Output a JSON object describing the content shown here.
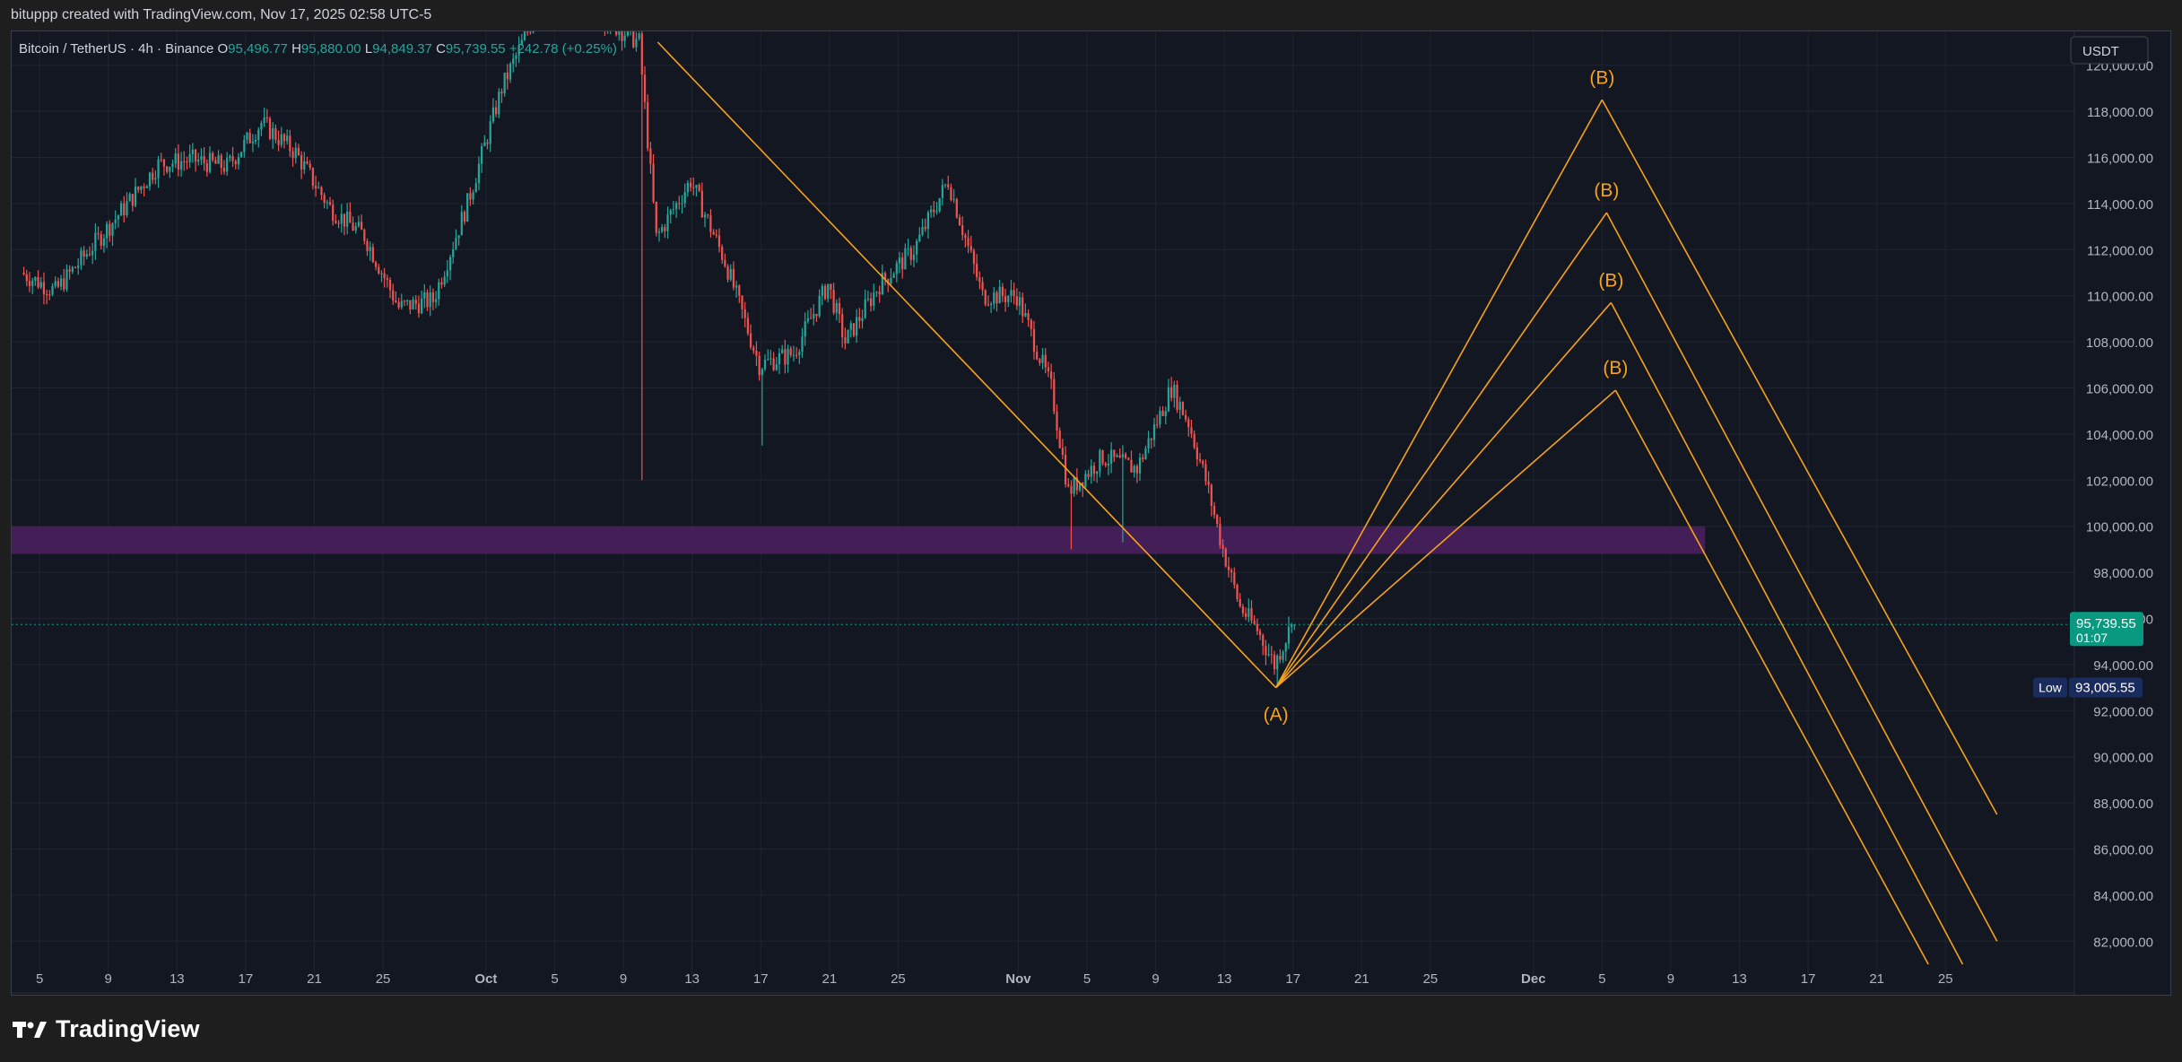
{
  "header": {
    "caption": "bituppp created with TradingView.com, Nov 17, 2025 02:58 UTC-5"
  },
  "legend": {
    "symbol": "Bitcoin / TetherUS · 4h · Binance",
    "open_label": "O",
    "open": "95,496.77",
    "high_label": "H",
    "high": "95,880.00",
    "low_label": "L",
    "low": "94,849.37",
    "close_label": "C",
    "close": "95,739.55",
    "change": "+242.78 (+0.25%)"
  },
  "branding": {
    "logo_text": "TradingView"
  },
  "colors": {
    "background": "#131722",
    "grid": "#1f2430",
    "up": "#26a69a",
    "down": "#ef5350",
    "annotation": "#f7a21b",
    "zone": "#4a1f5c",
    "price_tag": "#089981",
    "low_tag": "#1a2c5e"
  },
  "chart_data": {
    "type": "candlestick",
    "currency_label": "USDT",
    "y_axis": {
      "min": 81000,
      "max": 121000,
      "ticks": [
        82000,
        84000,
        86000,
        88000,
        90000,
        92000,
        94000,
        96000,
        98000,
        100000,
        102000,
        104000,
        106000,
        108000,
        110000,
        112000,
        114000,
        116000,
        118000,
        120000
      ],
      "tick_labels": [
        "82,000.00",
        "84,000.00",
        "86,000.00",
        "88,000.00",
        "90,000.00",
        "92,000.00",
        "94,000.00",
        "96,000.00",
        "98,000.00",
        "100,000.00",
        "102,000.00",
        "104,000.00",
        "106,000.00",
        "108,000.00",
        "110,000.00",
        "112,000.00",
        "114,000.00",
        "116,000.00",
        "118,000.00",
        "120,000.00"
      ]
    },
    "x_axis": {
      "start": "2025-09-04",
      "end": "2025-12-30",
      "ticks": [
        {
          "date": "2025-09-05",
          "label": "5"
        },
        {
          "date": "2025-09-09",
          "label": "9"
        },
        {
          "date": "2025-09-13",
          "label": "13"
        },
        {
          "date": "2025-09-17",
          "label": "17"
        },
        {
          "date": "2025-09-21",
          "label": "21"
        },
        {
          "date": "2025-09-25",
          "label": "25"
        },
        {
          "date": "2025-10-01",
          "label": "Oct"
        },
        {
          "date": "2025-10-05",
          "label": "5"
        },
        {
          "date": "2025-10-09",
          "label": "9"
        },
        {
          "date": "2025-10-13",
          "label": "13"
        },
        {
          "date": "2025-10-17",
          "label": "17"
        },
        {
          "date": "2025-10-21",
          "label": "21"
        },
        {
          "date": "2025-10-25",
          "label": "25"
        },
        {
          "date": "2025-11-01",
          "label": "Nov"
        },
        {
          "date": "2025-11-05",
          "label": "5"
        },
        {
          "date": "2025-11-09",
          "label": "9"
        },
        {
          "date": "2025-11-13",
          "label": "13"
        },
        {
          "date": "2025-11-17",
          "label": "17"
        },
        {
          "date": "2025-11-21",
          "label": "21"
        },
        {
          "date": "2025-11-25",
          "label": "25"
        },
        {
          "date": "2025-12-01",
          "label": "Dec"
        },
        {
          "date": "2025-12-05",
          "label": "5"
        },
        {
          "date": "2025-12-09",
          "label": "9"
        },
        {
          "date": "2025-12-13",
          "label": "13"
        },
        {
          "date": "2025-12-17",
          "label": "17"
        },
        {
          "date": "2025-12-21",
          "label": "21"
        },
        {
          "date": "2025-12-25",
          "label": "25"
        }
      ]
    },
    "price_path": [
      {
        "date": "2025-09-04",
        "price": 111000
      },
      {
        "date": "2025-09-06",
        "price": 110200
      },
      {
        "date": "2025-09-08",
        "price": 112000
      },
      {
        "date": "2025-09-10",
        "price": 113800
      },
      {
        "date": "2025-09-12",
        "price": 115700
      },
      {
        "date": "2025-09-14",
        "price": 115900
      },
      {
        "date": "2025-09-16",
        "price": 115600
      },
      {
        "date": "2025-09-18",
        "price": 117500
      },
      {
        "date": "2025-09-20",
        "price": 116200
      },
      {
        "date": "2025-09-22",
        "price": 113800
      },
      {
        "date": "2025-09-24",
        "price": 112600
      },
      {
        "date": "2025-09-26",
        "price": 109500
      },
      {
        "date": "2025-09-28",
        "price": 109800
      },
      {
        "date": "2025-09-30",
        "price": 114000
      },
      {
        "date": "2025-10-02",
        "price": 119000
      },
      {
        "date": "2025-10-04",
        "price": 122300
      },
      {
        "date": "2025-10-06",
        "price": 124000
      },
      {
        "date": "2025-10-08",
        "price": 122000
      },
      {
        "date": "2025-10-10",
        "price": 121000
      },
      {
        "date": "2025-10-11",
        "price": 112500
      },
      {
        "date": "2025-10-13",
        "price": 115000
      },
      {
        "date": "2025-10-15",
        "price": 111500
      },
      {
        "date": "2025-10-17",
        "price": 107000
      },
      {
        "date": "2025-10-19",
        "price": 107500
      },
      {
        "date": "2025-10-21",
        "price": 110500
      },
      {
        "date": "2025-10-22",
        "price": 108000
      },
      {
        "date": "2025-10-24",
        "price": 110500
      },
      {
        "date": "2025-10-26",
        "price": 112000
      },
      {
        "date": "2025-10-28",
        "price": 115000
      },
      {
        "date": "2025-10-30",
        "price": 110000
      },
      {
        "date": "2025-11-01",
        "price": 110000
      },
      {
        "date": "2025-11-03",
        "price": 106000
      },
      {
        "date": "2025-11-04",
        "price": 101500
      },
      {
        "date": "2025-11-06",
        "price": 103000
      },
      {
        "date": "2025-11-08",
        "price": 102500
      },
      {
        "date": "2025-11-10",
        "price": 106000
      },
      {
        "date": "2025-11-11",
        "price": 104500
      },
      {
        "date": "2025-11-12",
        "price": 102000
      },
      {
        "date": "2025-11-13",
        "price": 99000
      },
      {
        "date": "2025-11-14",
        "price": 96500
      },
      {
        "date": "2025-11-15",
        "price": 95500
      },
      {
        "date": "2025-11-16",
        "price": 94000
      },
      {
        "date": "2025-11-17",
        "price": 95739.55
      }
    ],
    "wicks": [
      {
        "date": "2025-10-10",
        "low": 102000
      },
      {
        "date": "2025-10-17",
        "low": 103500
      },
      {
        "date": "2025-11-04",
        "low": 99000
      },
      {
        "date": "2025-11-07",
        "low": 99300
      },
      {
        "date": "2025-11-16",
        "low": 93005.55
      }
    ],
    "zone": {
      "from": 98800,
      "to": 100000,
      "start": "2025-09-04",
      "end": "2025-12-11"
    },
    "trendline": {
      "from": {
        "date": "2025-10-11",
        "price": 121000
      },
      "to": {
        "date": "2025-11-16",
        "price": 93000
      }
    },
    "wave_a": {
      "date": "2025-11-16",
      "price": 93000,
      "label": "(A)"
    },
    "wave_b": [
      {
        "date": "2025-12-05",
        "price": 118500,
        "label": "(B)",
        "end": {
          "date": "2025-12-28",
          "price": 87500
        }
      },
      {
        "date": "2025-12-05",
        "price": 113600,
        "label": "(B)",
        "end": {
          "date": "2025-12-28",
          "price": 82000
        }
      },
      {
        "date": "2025-12-05",
        "price": 109700,
        "label": "(B)",
        "end": {
          "date": "2025-12-26",
          "price": 81000
        }
      },
      {
        "date": "2025-12-05",
        "price": 105900,
        "label": "(B)",
        "end": {
          "date": "2025-12-24",
          "price": 81000
        }
      }
    ],
    "last_price": {
      "value": "95,739.55",
      "countdown": "01:07",
      "price": 95739.55
    },
    "low_marker": {
      "label": "Low",
      "value": "93,005.55",
      "price": 93005.55
    }
  }
}
